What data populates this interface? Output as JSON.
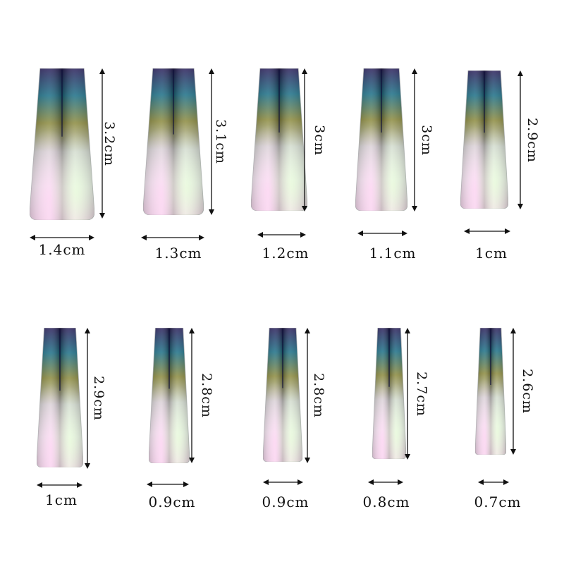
{
  "nails": [
    {
      "height_label": "3.2cm",
      "width_label": "1.4cm"
    },
    {
      "height_label": "3.1cm",
      "width_label": "1.3cm"
    },
    {
      "height_label": "3cm",
      "width_label": "1.2cm"
    },
    {
      "height_label": "3cm",
      "width_label": "1.1cm"
    },
    {
      "height_label": "2.9cm",
      "width_label": "1cm"
    },
    {
      "height_label": "2.9cm",
      "width_label": "1cm"
    },
    {
      "height_label": "2.8cm",
      "width_label": "0.9cm"
    },
    {
      "height_label": "2.8cm",
      "width_label": "0.9cm"
    },
    {
      "height_label": "2.7cm",
      "width_label": "0.8cm"
    },
    {
      "height_label": "2.6cm",
      "width_label": "0.7cm"
    }
  ],
  "colors": {
    "top_dark": "#2a1f5a",
    "teal": "#1c6f86",
    "gold": "#8b8a3e",
    "pearl": "#eef1f0",
    "iridescent_pink": "#f4d9ec"
  }
}
